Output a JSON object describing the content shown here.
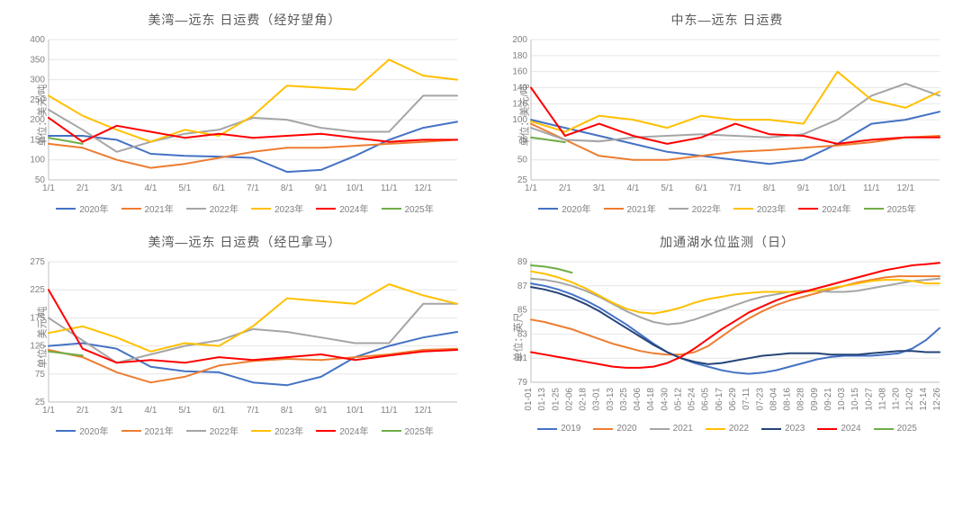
{
  "colors": {
    "blue": "#4472c4",
    "orange": "#ed7d31",
    "gray": "#a5a5a5",
    "yellow": "#ffc000",
    "red": "#ff0000",
    "green": "#70ad47",
    "navy": "#264478"
  },
  "axis_color": "#bfbfbf",
  "grid_color": "#e6e6e6",
  "text_color": "#808080",
  "title_fontsize": 14,
  "tick_fontsize": 10,
  "legend_fontsize": 10,
  "line_width": 2,
  "charts": [
    {
      "id": "tl",
      "title": "美湾—远东 日运费（经好望角）",
      "ylabel": "单位：美元/吨",
      "xlabels": [
        "1/1",
        "2/1",
        "3/1",
        "4/1",
        "5/1",
        "6/1",
        "7/1",
        "8/1",
        "9/1",
        "10/1",
        "11/1",
        "12/1"
      ],
      "xlim": [
        0,
        12
      ],
      "ylim": [
        50,
        400
      ],
      "ytick_step": 50,
      "legend": [
        "2020年",
        "2021年",
        "2022年",
        "2023年",
        "2024年",
        "2025年"
      ],
      "legend_colors": [
        "blue",
        "orange",
        "gray",
        "yellow",
        "red",
        "green"
      ],
      "series": {
        "2020": {
          "color": "blue",
          "vals": [
            160,
            160,
            150,
            115,
            110,
            108,
            105,
            70,
            75,
            110,
            150,
            180,
            195
          ]
        },
        "2021": {
          "color": "orange",
          "vals": [
            140,
            130,
            100,
            80,
            90,
            105,
            120,
            130,
            130,
            135,
            140,
            145,
            150
          ]
        },
        "2022": {
          "color": "gray",
          "vals": [
            225,
            175,
            120,
            145,
            165,
            175,
            205,
            200,
            180,
            170,
            170,
            260,
            260
          ]
        },
        "2023": {
          "color": "yellow",
          "vals": [
            260,
            210,
            175,
            145,
            175,
            160,
            210,
            285,
            280,
            275,
            350,
            310,
            300
          ]
        },
        "2024": {
          "color": "red",
          "vals": [
            205,
            145,
            185,
            170,
            155,
            165,
            155,
            160,
            165,
            155,
            145,
            150,
            150
          ]
        },
        "2025": {
          "color": "green",
          "vals": [
            155,
            140
          ]
        }
      }
    },
    {
      "id": "tr",
      "title": "中东—远东 日运费",
      "ylabel": "单位：美元/吨",
      "xlabels": [
        "1/1",
        "2/1",
        "3/1",
        "4/1",
        "5/1",
        "6/1",
        "7/1",
        "8/1",
        "9/1",
        "10/1",
        "11/1",
        "12/1"
      ],
      "xlim": [
        0,
        12
      ],
      "ylim": [
        25,
        200
      ],
      "yticks": [
        25,
        50,
        75,
        100,
        120,
        140,
        160,
        180,
        200
      ],
      "legend": [
        "2020年",
        "2021年",
        "2022年",
        "2023年",
        "2024年",
        "2025年"
      ],
      "legend_colors": [
        "blue",
        "orange",
        "gray",
        "yellow",
        "red",
        "green"
      ],
      "series": {
        "2020": {
          "color": "blue",
          "vals": [
            100,
            90,
            80,
            70,
            60,
            55,
            50,
            45,
            50,
            70,
            95,
            100,
            110
          ]
        },
        "2021": {
          "color": "orange",
          "vals": [
            95,
            75,
            55,
            50,
            50,
            55,
            60,
            62,
            65,
            68,
            72,
            78,
            80
          ]
        },
        "2022": {
          "color": "gray",
          "vals": [
            90,
            75,
            73,
            78,
            80,
            82,
            80,
            78,
            82,
            100,
            130,
            145,
            130
          ]
        },
        "2023": {
          "color": "yellow",
          "vals": [
            98,
            85,
            105,
            100,
            90,
            105,
            100,
            100,
            95,
            160,
            125,
            115,
            135
          ]
        },
        "2024": {
          "color": "red",
          "vals": [
            140,
            80,
            95,
            80,
            70,
            78,
            95,
            82,
            80,
            70,
            75,
            78,
            78
          ]
        },
        "2025": {
          "color": "green",
          "vals": [
            78,
            72
          ]
        }
      }
    },
    {
      "id": "bl",
      "title": "美湾—远东 日运费（经巴拿马）",
      "ylabel": "单位：美元/吨",
      "xlabels": [
        "1/1",
        "2/1",
        "3/1",
        "4/1",
        "5/1",
        "6/1",
        "7/1",
        "8/1",
        "9/1",
        "10/1",
        "11/1",
        "12/1"
      ],
      "xlim": [
        0,
        12
      ],
      "ylim": [
        25,
        275
      ],
      "ytick_step": 50,
      "legend": [
        "2020年",
        "2021年",
        "2022年",
        "2023年",
        "2024年",
        "2025年"
      ],
      "legend_colors": [
        "blue",
        "orange",
        "gray",
        "yellow",
        "red",
        "green"
      ],
      "series": {
        "2020": {
          "color": "blue",
          "vals": [
            125,
            130,
            120,
            88,
            80,
            78,
            60,
            55,
            70,
            105,
            125,
            140,
            150
          ]
        },
        "2021": {
          "color": "orange",
          "vals": [
            118,
            105,
            78,
            60,
            70,
            90,
            98,
            102,
            100,
            105,
            110,
            118,
            120
          ]
        },
        "2022": {
          "color": "gray",
          "vals": [
            175,
            135,
            95,
            110,
            125,
            135,
            155,
            150,
            140,
            130,
            130,
            200,
            200
          ]
        },
        "2023": {
          "color": "yellow",
          "vals": [
            148,
            160,
            140,
            115,
            130,
            125,
            160,
            210,
            205,
            200,
            235,
            215,
            200
          ]
        },
        "2024": {
          "color": "red",
          "vals": [
            225,
            120,
            95,
            100,
            95,
            105,
            100,
            105,
            110,
            100,
            108,
            115,
            118
          ]
        },
        "2025": {
          "color": "green",
          "vals": [
            115,
            108
          ]
        }
      }
    },
    {
      "id": "br",
      "title": "加通湖水位监测（日）",
      "ylabel": "单位：英尺",
      "xlabels": [
        "01-01",
        "01-13",
        "01-25",
        "02-06",
        "02-18",
        "03-01",
        "03-13",
        "03-25",
        "04-06",
        "04-18",
        "04-30",
        "05-12",
        "05-24",
        "06-05",
        "06-17",
        "06-29",
        "07-11",
        "07-23",
        "08-04",
        "08-16",
        "08-28",
        "09-09",
        "09-21",
        "10-03",
        "10-15",
        "10-27",
        "11-08",
        "11-20",
        "12-02",
        "12-14",
        "12-26"
      ],
      "xlabel_rotate": true,
      "xlim": [
        0,
        30
      ],
      "ylim": [
        79,
        89
      ],
      "ytick_step": 2,
      "legend": [
        "2019",
        "2020",
        "2021",
        "2022",
        "2023",
        "2024",
        "2025"
      ],
      "legend_colors": [
        "blue",
        "orange",
        "gray",
        "yellow",
        "navy",
        "red",
        "green"
      ],
      "series": {
        "2019": {
          "color": "blue",
          "vals": [
            87.2,
            87.0,
            86.7,
            86.3,
            85.8,
            85.2,
            84.5,
            83.8,
            83.0,
            82.2,
            81.5,
            81.0,
            80.6,
            80.3,
            80.0,
            79.8,
            79.7,
            79.8,
            80.0,
            80.3,
            80.6,
            80.9,
            81.1,
            81.2,
            81.2,
            81.2,
            81.3,
            81.4,
            81.8,
            82.5,
            83.5
          ]
        },
        "2020": {
          "color": "orange",
          "vals": [
            84.2,
            84.0,
            83.7,
            83.4,
            83.0,
            82.6,
            82.2,
            81.9,
            81.6,
            81.4,
            81.3,
            81.3,
            81.5,
            82.0,
            82.8,
            83.6,
            84.3,
            84.9,
            85.4,
            85.8,
            86.1,
            86.4,
            86.7,
            87.0,
            87.3,
            87.5,
            87.7,
            87.8,
            87.8,
            87.8,
            87.8
          ]
        },
        "2021": {
          "color": "gray",
          "vals": [
            87.6,
            87.5,
            87.3,
            87.0,
            86.6,
            86.1,
            85.5,
            84.9,
            84.4,
            84.0,
            83.8,
            83.9,
            84.2,
            84.6,
            85.0,
            85.4,
            85.8,
            86.1,
            86.3,
            86.5,
            86.6,
            86.6,
            86.5,
            86.5,
            86.6,
            86.8,
            87.0,
            87.2,
            87.4,
            87.5,
            87.6
          ]
        },
        "2022": {
          "color": "yellow",
          "vals": [
            88.2,
            88.0,
            87.7,
            87.3,
            86.8,
            86.2,
            85.6,
            85.1,
            84.8,
            84.7,
            84.9,
            85.2,
            85.6,
            85.9,
            86.1,
            86.3,
            86.4,
            86.5,
            86.5,
            86.5,
            86.5,
            86.6,
            86.8,
            87.0,
            87.2,
            87.4,
            87.5,
            87.5,
            87.4,
            87.2,
            87.2
          ]
        },
        "2023": {
          "color": "navy",
          "vals": [
            86.9,
            86.7,
            86.4,
            86.0,
            85.5,
            84.9,
            84.2,
            83.5,
            82.8,
            82.1,
            81.5,
            81.0,
            80.7,
            80.5,
            80.6,
            80.8,
            81.0,
            81.2,
            81.3,
            81.4,
            81.4,
            81.4,
            81.3,
            81.3,
            81.3,
            81.4,
            81.5,
            81.6,
            81.6,
            81.5,
            81.5
          ]
        },
        "2024": {
          "color": "red",
          "vals": [
            81.5,
            81.3,
            81.1,
            80.9,
            80.7,
            80.5,
            80.3,
            80.2,
            80.2,
            80.3,
            80.6,
            81.1,
            81.8,
            82.6,
            83.4,
            84.1,
            84.8,
            85.3,
            85.8,
            86.2,
            86.5,
            86.8,
            87.1,
            87.4,
            87.7,
            88.0,
            88.3,
            88.5,
            88.7,
            88.8,
            88.9
          ]
        },
        "2025": {
          "color": "green",
          "vals": [
            88.7,
            88.6,
            88.4,
            88.1
          ]
        }
      }
    }
  ]
}
